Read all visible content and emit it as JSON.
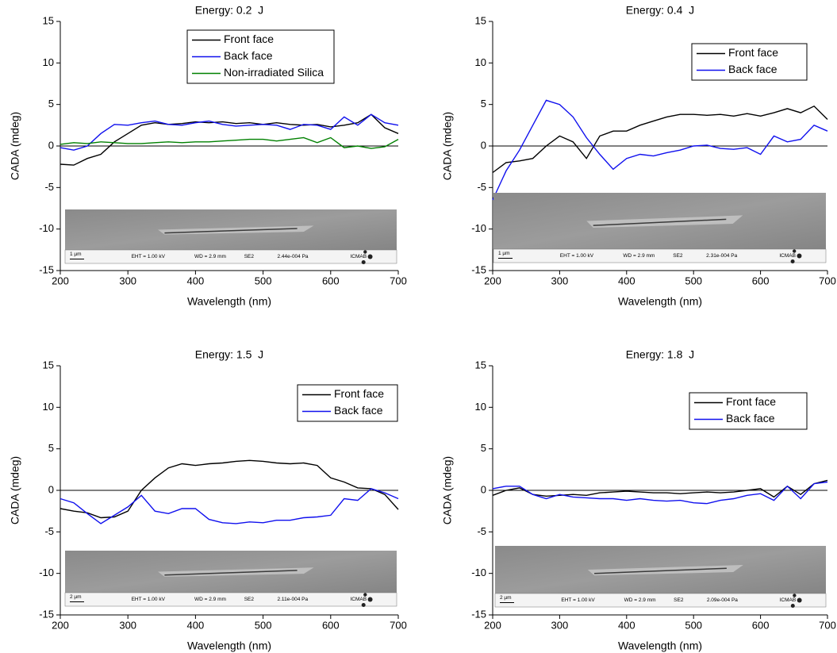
{
  "chart_data": [
    {
      "type": "line",
      "title": "Energy: 0.2  J",
      "xlabel": "Wavelength (nm)",
      "ylabel": "CADA (mdeg)",
      "x": [
        200,
        220,
        240,
        260,
        280,
        300,
        320,
        340,
        360,
        380,
        400,
        420,
        440,
        460,
        480,
        500,
        520,
        540,
        560,
        580,
        600,
        620,
        640,
        660,
        680,
        700
      ],
      "series": [
        {
          "name": "Front face",
          "color": "#000000",
          "values": [
            -2.2,
            -2.3,
            -1.5,
            -1,
            0.5,
            1.5,
            2.5,
            2.8,
            2.6,
            2.7,
            2.9,
            2.8,
            2.9,
            2.7,
            2.8,
            2.6,
            2.8,
            2.6,
            2.5,
            2.6,
            2.3,
            2.5,
            2.8,
            3.8,
            2.2,
            1.5
          ]
        },
        {
          "name": "Back face",
          "color": "#1010ee",
          "values": [
            -0.2,
            -0.5,
            0,
            1.5,
            2.6,
            2.5,
            2.8,
            3.0,
            2.6,
            2.5,
            2.8,
            3.0,
            2.6,
            2.4,
            2.5,
            2.6,
            2.5,
            2.0,
            2.6,
            2.5,
            2.0,
            3.5,
            2.5,
            3.8,
            2.8,
            2.5
          ]
        },
        {
          "name": "Non-irradiated Silica",
          "color": "#008000",
          "values": [
            0.2,
            0.4,
            0.3,
            0.5,
            0.4,
            0.3,
            0.3,
            0.4,
            0.5,
            0.4,
            0.5,
            0.5,
            0.6,
            0.7,
            0.8,
            0.8,
            0.6,
            0.8,
            1.0,
            0.4,
            1.0,
            -0.2,
            0,
            -0.3,
            -0.1,
            0.8
          ]
        }
      ],
      "xlim": [
        200,
        700
      ],
      "xticks": [
        200,
        300,
        400,
        500,
        600,
        700
      ],
      "ylim": [
        -15,
        15
      ],
      "yticks": [
        -15,
        -10,
        -5,
        0,
        5,
        10,
        15
      ],
      "zero_line": true,
      "legend": "upper center",
      "inset": {
        "scale_bar": "1 µm",
        "eht": "EHT = 1.00 kV",
        "wd": "WD = 2.9 mm",
        "detector": "SE2",
        "pressure": "2.44e-004 Pa",
        "logo": "ICMAB"
      }
    },
    {
      "type": "line",
      "title": "Energy: 0.4  J",
      "xlabel": "Wavelength (nm)",
      "ylabel": "CADA (mdeg)",
      "x": [
        200,
        220,
        240,
        260,
        280,
        300,
        320,
        340,
        360,
        380,
        400,
        420,
        440,
        460,
        480,
        500,
        520,
        540,
        560,
        580,
        600,
        620,
        640,
        660,
        680,
        700
      ],
      "series": [
        {
          "name": "Front face",
          "color": "#000000",
          "values": [
            -3.2,
            -2,
            -1.8,
            -1.5,
            0,
            1.2,
            0.5,
            -1.5,
            1.2,
            1.8,
            1.8,
            2.5,
            3.0,
            3.5,
            3.8,
            3.8,
            3.7,
            3.8,
            3.6,
            3.9,
            3.6,
            4.0,
            4.5,
            4.0,
            4.8,
            3.2
          ]
        },
        {
          "name": "Back face",
          "color": "#1010ee",
          "values": [
            -6.5,
            -3,
            -0.5,
            2.5,
            5.5,
            5,
            3.5,
            1.0,
            -1,
            -2.8,
            -1.5,
            -1.0,
            -1.2,
            -0.8,
            -0.5,
            0,
            0.1,
            -0.3,
            -0.4,
            -0.2,
            -1.0,
            1.2,
            0.5,
            0.8,
            2.5,
            1.8
          ]
        }
      ],
      "xlim": [
        200,
        700
      ],
      "xticks": [
        200,
        300,
        400,
        500,
        600,
        700
      ],
      "ylim": [
        -15,
        15
      ],
      "yticks": [
        -15,
        -10,
        -5,
        0,
        5,
        10,
        15
      ],
      "zero_line": true,
      "legend": "upper right",
      "inset": {
        "scale_bar": "1 µm",
        "eht": "EHT = 1.00 kV",
        "wd": "WD = 2.9 mm",
        "detector": "SE2",
        "pressure": "2.31e-004 Pa",
        "logo": "ICMAB"
      }
    },
    {
      "type": "line",
      "title": "Energy: 1.5  J",
      "xlabel": "Wavelength (nm)",
      "ylabel": "CADA (mdeg)",
      "x": [
        200,
        220,
        240,
        260,
        280,
        300,
        320,
        340,
        360,
        380,
        400,
        420,
        440,
        460,
        480,
        500,
        520,
        540,
        560,
        580,
        600,
        620,
        640,
        660,
        680,
        700
      ],
      "series": [
        {
          "name": "Front face",
          "color": "#000000",
          "values": [
            -2.2,
            -2.5,
            -2.7,
            -3.3,
            -3.2,
            -2.5,
            0,
            1.5,
            2.7,
            3.2,
            3.0,
            3.2,
            3.3,
            3.5,
            3.6,
            3.5,
            3.3,
            3.2,
            3.3,
            3.0,
            1.5,
            1.0,
            0.3,
            0.2,
            -0.5,
            -2.3
          ]
        },
        {
          "name": "Back face",
          "color": "#1010ee",
          "values": [
            -1.0,
            -1.5,
            -2.8,
            -4.0,
            -3.0,
            -2.0,
            -0.6,
            -2.5,
            -2.8,
            -2.2,
            -2.2,
            -3.5,
            -3.9,
            -4.0,
            -3.8,
            -3.9,
            -3.6,
            -3.6,
            -3.3,
            -3.2,
            -3.0,
            -1.0,
            -1.2,
            0.2,
            -0.3,
            -1.0
          ]
        }
      ],
      "xlim": [
        200,
        700
      ],
      "xticks": [
        200,
        300,
        400,
        500,
        600,
        700
      ],
      "ylim": [
        -15,
        15
      ],
      "yticks": [
        -15,
        -10,
        -5,
        0,
        5,
        10,
        15
      ],
      "zero_line": true,
      "legend": "upper right",
      "inset": {
        "scale_bar": "2 µm",
        "eht": "EHT = 1.00 kV",
        "wd": "WD = 2.9 mm",
        "detector": "SE2",
        "pressure": "2.11e-004 Pa",
        "logo": "ICMAB"
      }
    },
    {
      "type": "line",
      "title": "Energy: 1.8  J",
      "xlabel": "Wavelength (nm)",
      "ylabel": "CADA (mdeg)",
      "x": [
        200,
        220,
        240,
        260,
        280,
        300,
        320,
        340,
        360,
        380,
        400,
        420,
        440,
        460,
        480,
        500,
        520,
        540,
        560,
        580,
        600,
        620,
        640,
        660,
        680,
        700
      ],
      "series": [
        {
          "name": "Front face",
          "color": "#000000",
          "values": [
            -0.6,
            0,
            0.3,
            -0.5,
            -0.7,
            -0.6,
            -0.5,
            -0.6,
            -0.3,
            -0.2,
            -0.1,
            -0.2,
            -0.3,
            -0.3,
            -0.4,
            -0.3,
            -0.2,
            -0.3,
            -0.2,
            0,
            0.2,
            -0.8,
            0.5,
            -0.5,
            0.8,
            1.2
          ]
        },
        {
          "name": "Back face",
          "color": "#1010ee",
          "values": [
            0.2,
            0.5,
            0.5,
            -0.5,
            -1.0,
            -0.5,
            -0.8,
            -0.9,
            -1.0,
            -1.0,
            -1.2,
            -1.0,
            -1.2,
            -1.3,
            -1.2,
            -1.5,
            -1.6,
            -1.2,
            -1.0,
            -0.6,
            -0.4,
            -1.2,
            0.5,
            -1.0,
            0.8,
            1.0
          ]
        }
      ],
      "xlim": [
        200,
        700
      ],
      "xticks": [
        200,
        300,
        400,
        500,
        600,
        700
      ],
      "ylim": [
        -15,
        15
      ],
      "yticks": [
        -15,
        -10,
        -5,
        0,
        5,
        10,
        15
      ],
      "zero_line": true,
      "legend": "upper right",
      "inset": {
        "scale_bar": "2 µm",
        "eht": "EHT = 1.00 kV",
        "wd": "WD = 2.9 mm",
        "detector": "SE2",
        "pressure": "2.09e-004 Pa",
        "logo": "ICMAB"
      }
    }
  ]
}
